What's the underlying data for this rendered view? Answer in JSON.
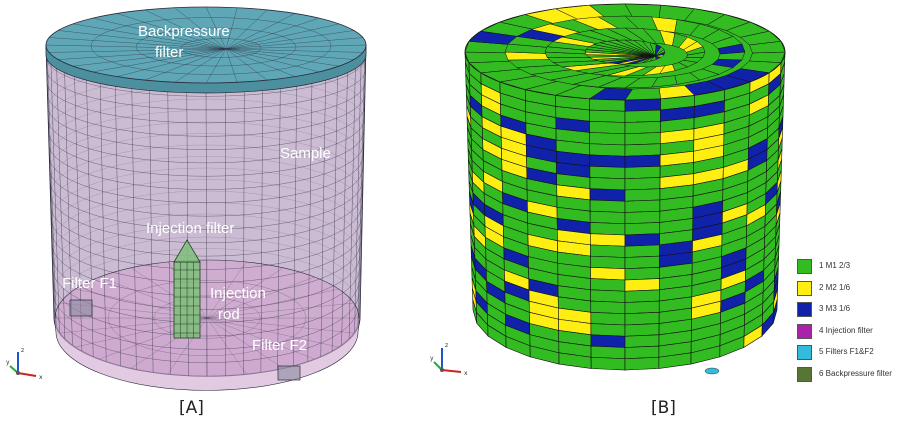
{
  "panel_a": {
    "caption": "[A]",
    "labels": {
      "backpressure_1": "Backpressure",
      "backpressure_2": "filter",
      "sample": "Sample",
      "injection_filter": "Injection filter",
      "filter_f1": "Filter F1",
      "injection_rod_1": "Injection",
      "injection_rod_2": "rod",
      "filter_f2": "Filter F2"
    },
    "colors": {
      "top_cap": "#5fa7b6",
      "body": "#b9a6c6",
      "bottom": "#cfa9cf",
      "mesh": "#2a2a3a"
    }
  },
  "panel_b": {
    "caption": "[B]",
    "legend": [
      {
        "label": "1 M1 2/3",
        "color": "#33bb22"
      },
      {
        "label": "2 M2 1/6",
        "color": "#ffee11"
      },
      {
        "label": "3 M3 1/6",
        "color": "#1122aa"
      },
      {
        "label": "4 Injection filter",
        "color": "#aa22aa"
      },
      {
        "label": "5 Filters F1&F2",
        "color": "#33bbdd"
      },
      {
        "label": "6 Backpressure filter",
        "color": "#557733"
      }
    ]
  },
  "axes": {
    "x": "x",
    "y": "y",
    "z": "z"
  }
}
